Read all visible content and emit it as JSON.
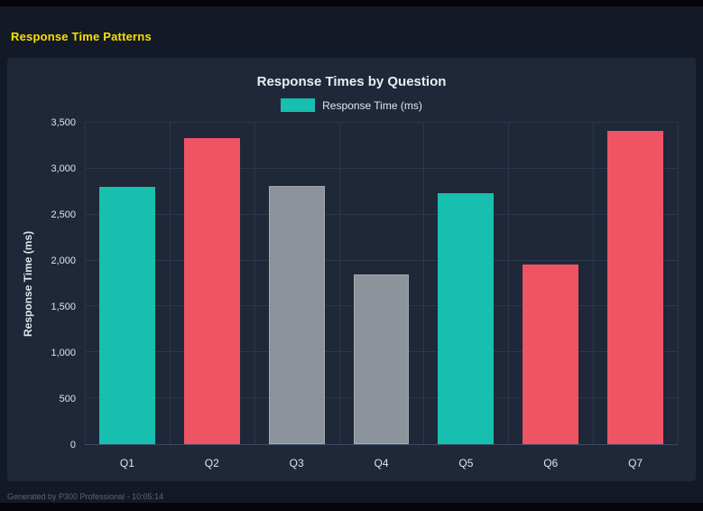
{
  "page": {
    "header_title": "Response Time Patterns",
    "footer": "Generated by P300 Professional - 10:05:14"
  },
  "chart_data": {
    "type": "bar",
    "title": "Response Times by Question",
    "legend": {
      "label": "Response Time (ms)",
      "color": "#17bfae"
    },
    "legend_position": "top",
    "categories": [
      "Q1",
      "Q2",
      "Q3",
      "Q4",
      "Q5",
      "Q6",
      "Q7"
    ],
    "values": [
      2800,
      3330,
      2810,
      1845,
      2735,
      1960,
      3410
    ],
    "bar_colors": [
      "#17bfae",
      "#ee5464",
      "#8d939a",
      "#8d939a",
      "#17bfae",
      "#ee5464",
      "#ee5464"
    ],
    "xlabel": "",
    "ylabel": "Response Time (ms)",
    "ylim": [
      0,
      3500
    ],
    "ytick_step": 500,
    "yticks": [
      "0",
      "500",
      "1,000",
      "1,500",
      "2,000",
      "2,500",
      "3,000",
      "3,500"
    ],
    "grid": true
  },
  "colors": {
    "accent_yellow": "#f5e100",
    "teal": "#17bfae",
    "red": "#ee5464",
    "gray": "#8d939a",
    "page_bg": "#141927",
    "panel_bg": "#1e2838",
    "grid_line": "#2b374b"
  }
}
